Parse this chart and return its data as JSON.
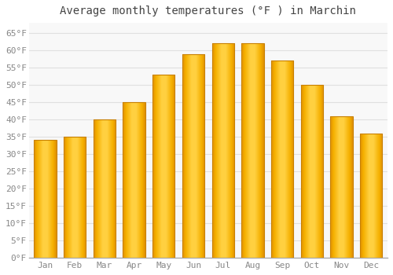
{
  "title": "Average monthly temperatures (°F ) in Marchin",
  "months": [
    "Jan",
    "Feb",
    "Mar",
    "Apr",
    "May",
    "Jun",
    "Jul",
    "Aug",
    "Sep",
    "Oct",
    "Nov",
    "Dec"
  ],
  "values": [
    34,
    35,
    40,
    45,
    53,
    59,
    62,
    62,
    57,
    50,
    41,
    36
  ],
  "bar_color_left": "#F5A800",
  "bar_color_center": "#FFD040",
  "bar_color_right": "#F5A800",
  "bar_edge_color": "#C88000",
  "background_color": "#FFFFFF",
  "plot_bg_color": "#F8F8F8",
  "grid_color": "#E0E0E0",
  "ylim": [
    0,
    68
  ],
  "yticks": [
    0,
    5,
    10,
    15,
    20,
    25,
    30,
    35,
    40,
    45,
    50,
    55,
    60,
    65
  ],
  "title_fontsize": 10,
  "tick_fontsize": 8,
  "tick_color": "#888888",
  "title_color": "#444444",
  "bar_width": 0.75
}
